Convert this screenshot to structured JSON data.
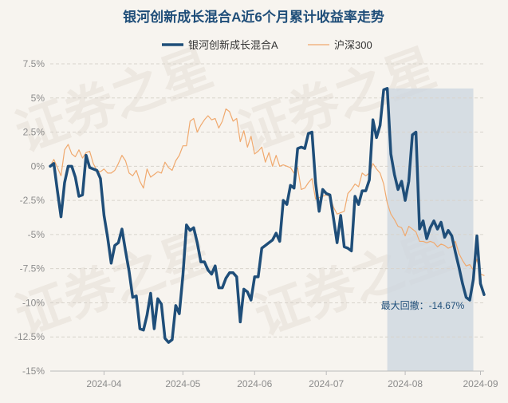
{
  "chart_data": {
    "type": "line",
    "title": "银河创新成长混合A近6个月累计收益率走势",
    "watermark": "证券之星",
    "xlabel": "",
    "ylabel": "",
    "ylim": [
      -15,
      7.5
    ],
    "yticks": [
      7.5,
      5,
      2.5,
      0,
      -2.5,
      -5,
      -7.5,
      -10,
      -12.5,
      -15
    ],
    "ytick_labels": [
      "7.5%",
      "5%",
      "2.5%",
      "0%",
      "-2.5%",
      "-5%",
      "-7.5%",
      "-10%",
      "-12.5%",
      "-15%"
    ],
    "x_ticks": [
      {
        "label": "2024-04",
        "index": 15
      },
      {
        "label": "2024-05",
        "index": 37
      },
      {
        "label": "2024-06",
        "index": 57
      },
      {
        "label": "2024-07",
        "index": 77
      },
      {
        "label": "2024-08",
        "index": 99
      },
      {
        "label": "2024-09",
        "index": 120
      }
    ],
    "n_points": 122,
    "legend_position": "top-center",
    "series": [
      {
        "name": "银河创新成长混合A",
        "color": "#1f4e79",
        "values": [
          0.0,
          0.2,
          -1.8,
          -3.7,
          -1.2,
          0.0,
          0.0,
          -0.8,
          -2.2,
          -2.1,
          0.8,
          -0.1,
          -0.2,
          -0.3,
          -0.9,
          -3.6,
          -5.2,
          -7.1,
          -5.8,
          -5.6,
          -4.6,
          -6.2,
          -7.7,
          -9.6,
          -9.5,
          -11.9,
          -12.0,
          -10.9,
          -9.3,
          -11.9,
          -9.7,
          -10.1,
          -12.6,
          -12.9,
          -12.7,
          -10.2,
          -10.8,
          -8.0,
          -4.3,
          -4.7,
          -4.5,
          -5.6,
          -7.0,
          -7.0,
          -7.6,
          -7.9,
          -7.3,
          -8.9,
          -8.9,
          -8.2,
          -7.8,
          -7.8,
          -8.1,
          -11.4,
          -9.0,
          -9.2,
          -9.8,
          -8.1,
          -8.1,
          -6.0,
          -5.8,
          -5.6,
          -5.4,
          -4.9,
          -5.5,
          -2.5,
          -2.8,
          -1.4,
          -1.6,
          1.3,
          1.4,
          1.3,
          2.4,
          2.5,
          -1.2,
          -3.3,
          -1.7,
          -2.0,
          -2.1,
          -3.8,
          -5.6,
          -3.6,
          -5.9,
          -6.0,
          -6.2,
          -2.2,
          -2.8,
          -1.8,
          -1.8,
          -1.0,
          3.4,
          2.1,
          3.0,
          5.6,
          5.7,
          0.9,
          -0.6,
          -1.7,
          -1.1,
          -2.5,
          -1.1,
          2.3,
          2.5,
          -4.6,
          -4.0,
          -5.3,
          -4.5,
          -4.0,
          -4.6,
          -4.1,
          -5.2,
          -4.7,
          -5.1,
          -6.3,
          -7.4,
          -8.6,
          -9.6,
          -9.8,
          -8.3,
          -5.1,
          -8.6,
          -9.4
        ]
      },
      {
        "name": "沪深300",
        "color": "#f0a96e",
        "values": [
          0.0,
          0.5,
          -0.1,
          -0.7,
          1.2,
          1.6,
          0.9,
          0.7,
          1.2,
          0.6,
          1.0,
          1.1,
          0.2,
          -0.3,
          -0.4,
          -0.2,
          -0.5,
          -0.5,
          -0.3,
          0.2,
          0.8,
          0.4,
          -0.5,
          -0.7,
          -0.3,
          -1.1,
          -1.6,
          -0.2,
          -0.8,
          -0.6,
          -0.4,
          -0.5,
          0.3,
          -0.1,
          -0.3,
          0.4,
          0.8,
          1.5,
          1.5,
          3.3,
          3.5,
          2.5,
          3.0,
          3.4,
          3.7,
          3.4,
          3.5,
          2.8,
          3.3,
          4.2,
          4.0,
          3.3,
          3.5,
          1.8,
          2.6,
          1.4,
          2.2,
          0.9,
          1.1,
          1.4,
          0.3,
          1.0,
          0.0,
          0.8,
          0.0,
          0.1,
          0.0,
          -0.1,
          -0.5,
          -0.1,
          -1.7,
          -1.6,
          -1.2,
          -0.9,
          -2.4,
          -2.3,
          -2.2,
          -2.1,
          -2.2,
          -3.0,
          -3.5,
          -3.4,
          -3.3,
          -2.0,
          -1.7,
          -1.3,
          -1.5,
          -0.5,
          -0.7,
          -0.5,
          0.2,
          -0.2,
          -0.5,
          -1.3,
          -2.7,
          -3.5,
          -3.9,
          -4.4,
          -4.5,
          -5.1,
          -4.4,
          -4.6,
          -4.8,
          -5.5,
          -5.5,
          -5.6,
          -5.5,
          -5.6,
          -5.9,
          -5.7,
          -5.8,
          -6.0,
          -5.9,
          -5.5,
          -6.4,
          -6.9,
          -7.3,
          -7.2,
          -7.6,
          -6.8,
          -7.9,
          -8.0
        ]
      }
    ],
    "drawdown": {
      "label": "最大回撤：-14.67%",
      "start_index": 94,
      "end_index": 118,
      "fill": "#cbd5df"
    }
  }
}
